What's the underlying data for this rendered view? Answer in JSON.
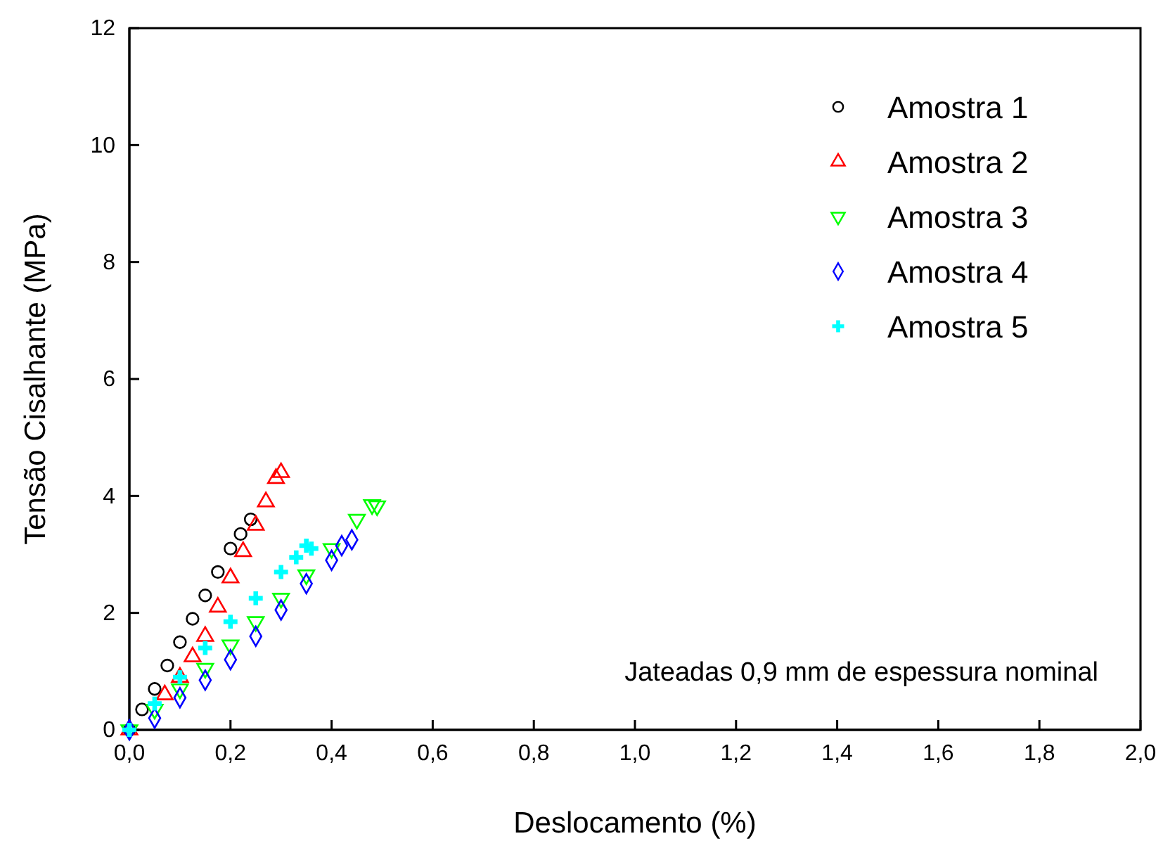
{
  "chart_data": {
    "type": "scatter",
    "xlabel": "Deslocamento (%)",
    "ylabel": "Tensão Cisalhante (MPa)",
    "xlim": [
      0,
      2
    ],
    "xticks": [
      {
        "value": 0,
        "label": "0,0"
      },
      {
        "value": 0.2,
        "label": "0,2"
      },
      {
        "value": 0.4,
        "label": "0,4"
      },
      {
        "value": 0.6,
        "label": "0,6"
      },
      {
        "value": 0.8,
        "label": "0,8"
      },
      {
        "value": 1,
        "label": "1,0"
      },
      {
        "value": 1.2,
        "label": "1,2"
      },
      {
        "value": 1.4,
        "label": "1,4"
      },
      {
        "value": 1.6,
        "label": "1,6"
      },
      {
        "value": 1.8,
        "label": "1,8"
      },
      {
        "value": 2,
        "label": "2,0"
      }
    ],
    "ylim": [
      0,
      12
    ],
    "yticks": [
      0,
      2,
      4,
      6,
      8,
      10,
      12
    ],
    "legend": "top right",
    "grid": false,
    "annotations": [
      "Jateadas 0,9 mm de espessura nominal"
    ],
    "series": [
      {
        "name": "Amostra 1",
        "color": "#000000",
        "marker": "circle",
        "x": [
          0,
          0.025,
          0.05,
          0.075,
          0.1,
          0.125,
          0.15,
          0.175,
          0.2,
          0.22,
          0.24
        ],
        "values": [
          0,
          0.35,
          0.7,
          1.1,
          1.5,
          1.9,
          2.3,
          2.7,
          3.1,
          3.35,
          3.6
        ]
      },
      {
        "name": "Amostra 2",
        "color": "#ff0000",
        "marker": "triangle",
        "x": [
          0,
          0.07,
          0.1,
          0.125,
          0.15,
          0.175,
          0.2,
          0.225,
          0.25,
          0.27,
          0.29,
          0.3
        ],
        "values": [
          0,
          0.6,
          0.9,
          1.25,
          1.6,
          2.1,
          2.6,
          3.05,
          3.5,
          3.9,
          4.3,
          4.4
        ]
      },
      {
        "name": "Amostra 3",
        "color": "#00ff00",
        "marker": "triangle-down",
        "x": [
          0,
          0.05,
          0.1,
          0.15,
          0.2,
          0.25,
          0.3,
          0.35,
          0.4,
          0.45,
          0.48,
          0.49
        ],
        "values": [
          0,
          0.35,
          0.7,
          1.05,
          1.45,
          1.85,
          2.25,
          2.65,
          3.1,
          3.6,
          3.85,
          3.83
        ]
      },
      {
        "name": "Amostra 4",
        "color": "#0000ff",
        "marker": "diamond",
        "x": [
          0,
          0.05,
          0.1,
          0.15,
          0.2,
          0.25,
          0.3,
          0.35,
          0.4,
          0.42,
          0.44
        ],
        "values": [
          0,
          0.2,
          0.55,
          0.85,
          1.2,
          1.6,
          2.05,
          2.5,
          2.9,
          3.15,
          3.25
        ]
      },
      {
        "name": "Amostra 5",
        "color": "#00ffff",
        "marker": "cross",
        "x": [
          0,
          0.05,
          0.1,
          0.15,
          0.2,
          0.25,
          0.3,
          0.33,
          0.35,
          0.36
        ],
        "values": [
          0,
          0.45,
          0.9,
          1.4,
          1.85,
          2.25,
          2.7,
          2.95,
          3.15,
          3.1
        ]
      }
    ]
  }
}
